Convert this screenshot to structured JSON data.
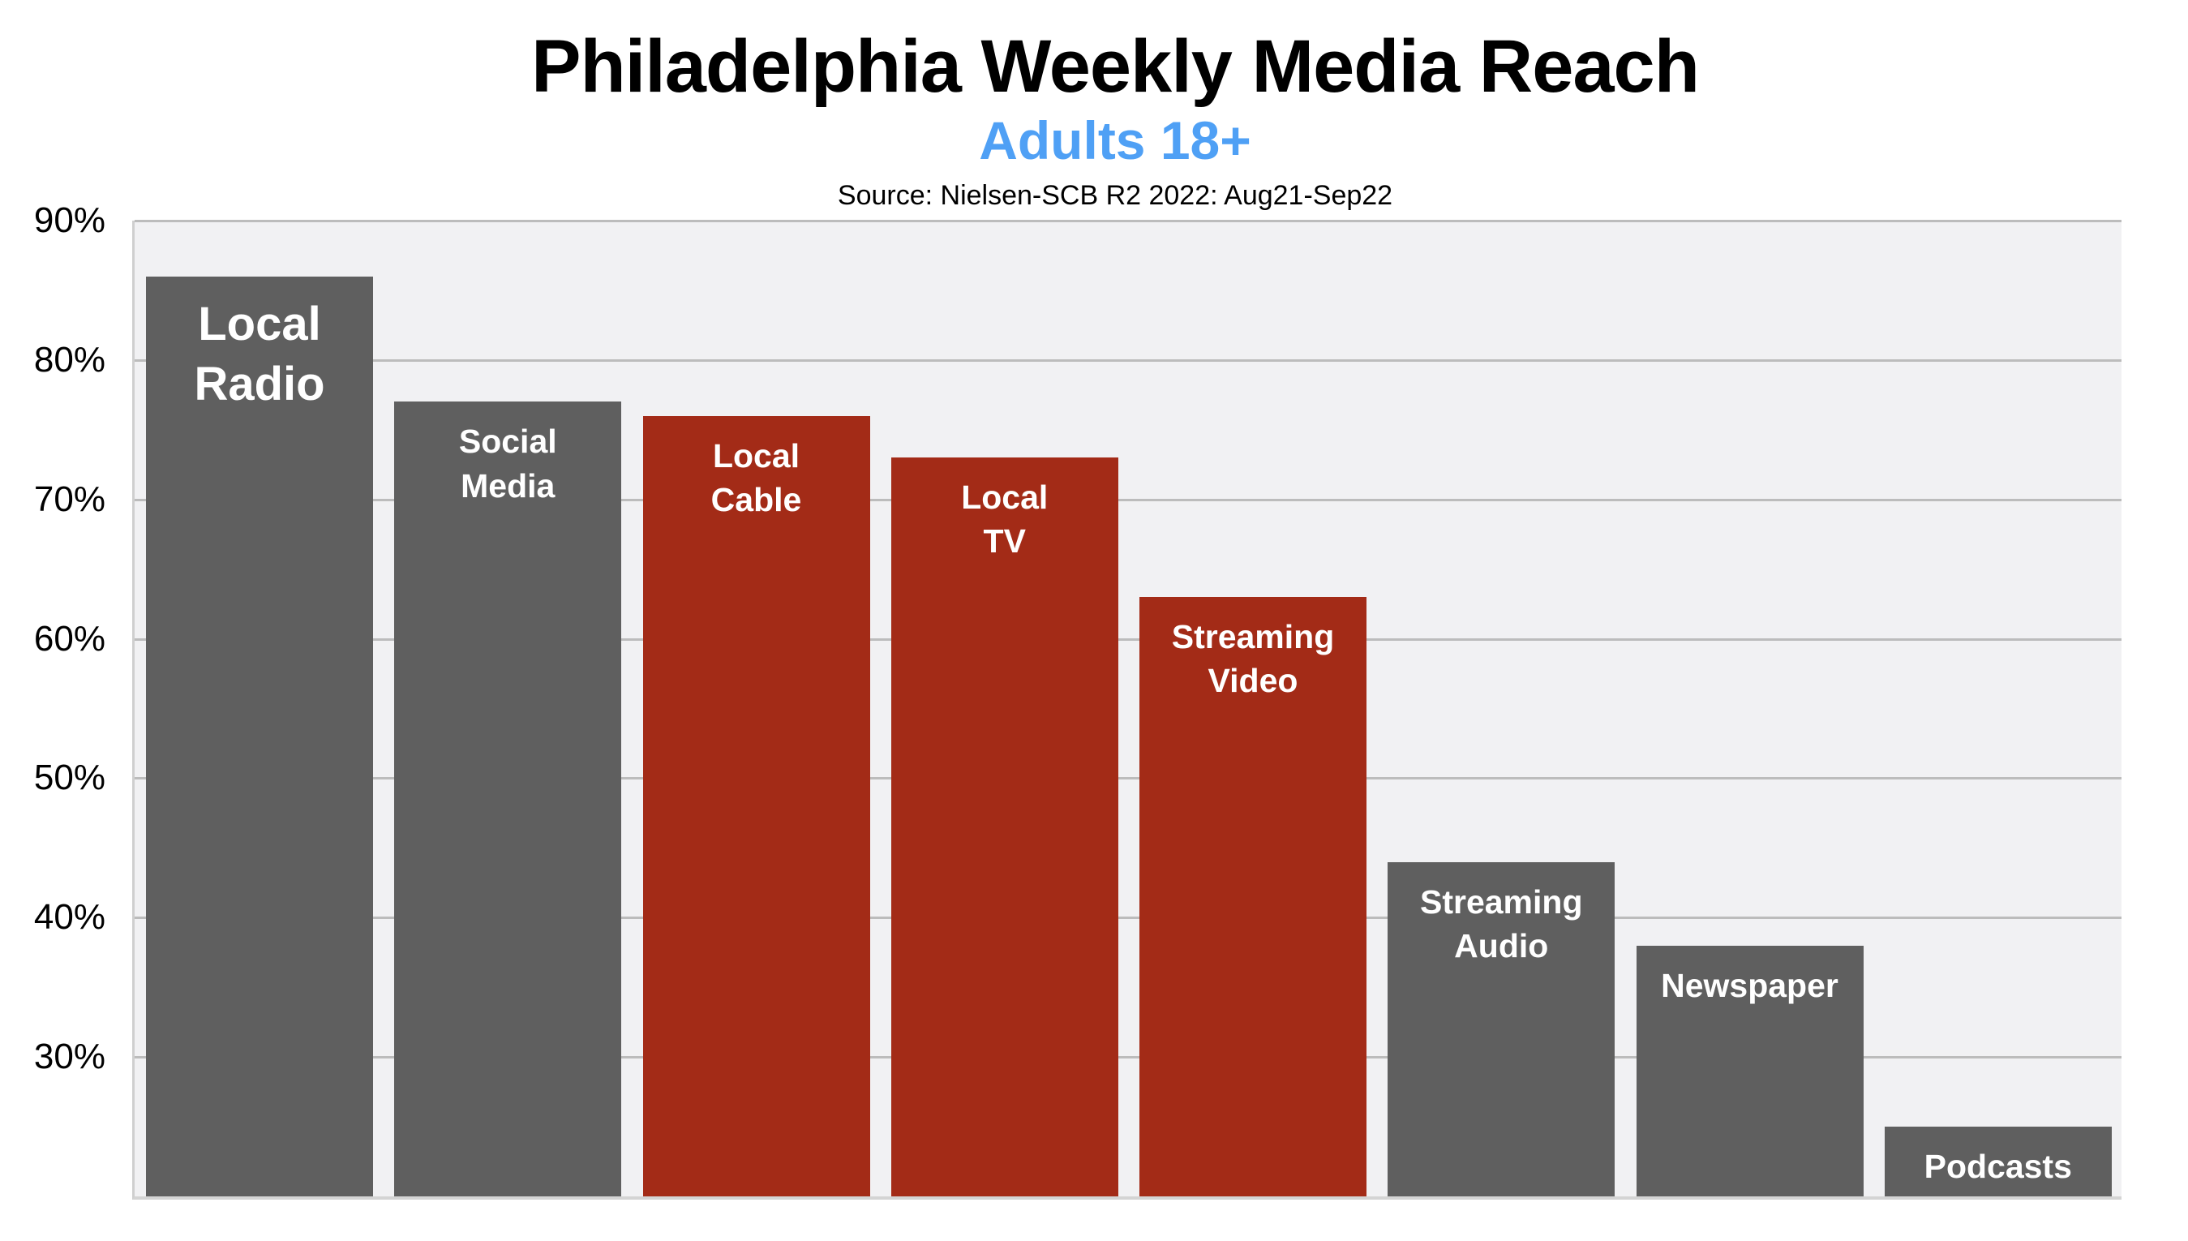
{
  "header": {
    "title": "Philadelphia Weekly Media Reach",
    "subtitle": "Adults 18+",
    "source": "Source: Nielsen-SCB R2 2022: Aug21-Sep22"
  },
  "colors": {
    "gray_bar": "#5f5f5f",
    "red_bar": "#a32b17",
    "subtitle": "#4fa0f5",
    "plot_background": "#f1f1f3",
    "gridline": "#bcbcbc"
  },
  "y_axis": {
    "ticks": [
      "90%",
      "80%",
      "70%",
      "60%",
      "50%",
      "40%",
      "30%"
    ]
  },
  "bars": [
    {
      "label": "Local\nRadio",
      "value": 86,
      "color": "gray"
    },
    {
      "label": "Social\nMedia",
      "value": 77,
      "color": "gray"
    },
    {
      "label": "Local\nCable",
      "value": 76,
      "color": "red"
    },
    {
      "label": "Local\nTV",
      "value": 73,
      "color": "red"
    },
    {
      "label": "Streaming\nVideo",
      "value": 63,
      "color": "red"
    },
    {
      "label": "Streaming\nAudio",
      "value": 44,
      "color": "gray"
    },
    {
      "label": "Newspaper",
      "value": 38,
      "color": "gray"
    },
    {
      "label": "Podcasts",
      "value": 25,
      "color": "gray"
    }
  ],
  "chart_data": {
    "type": "bar",
    "title": "Philadelphia Weekly Media Reach",
    "subtitle": "Adults 18+",
    "source": "Source: Nielsen-SCB R2 2022: Aug21-Sep22",
    "categories": [
      "Local Radio",
      "Social Media",
      "Local Cable",
      "Local TV",
      "Streaming Video",
      "Streaming Audio",
      "Newspaper",
      "Podcasts"
    ],
    "values": [
      86,
      77,
      76,
      73,
      63,
      44,
      38,
      25
    ],
    "unit": "%",
    "bar_colors": [
      "#5f5f5f",
      "#5f5f5f",
      "#a32b17",
      "#a32b17",
      "#a32b17",
      "#5f5f5f",
      "#5f5f5f",
      "#5f5f5f"
    ],
    "xlabel": "",
    "ylabel": "",
    "ylim": [
      20,
      90
    ],
    "yticks": [
      "30%",
      "40%",
      "50%",
      "60%",
      "70%",
      "80%",
      "90%"
    ],
    "grid": true,
    "legend": "none (labels inside bars)"
  }
}
